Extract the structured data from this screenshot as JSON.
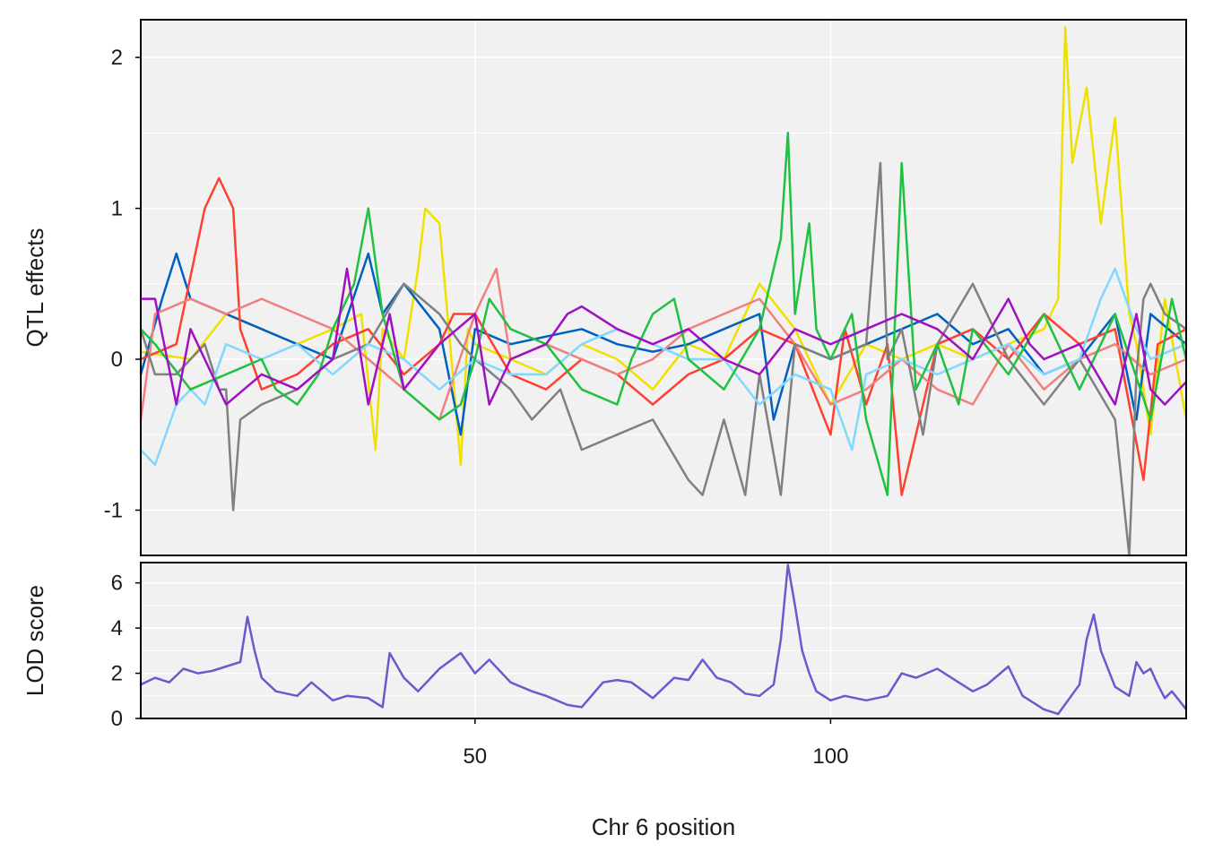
{
  "chart_data": [
    {
      "type": "line",
      "panel": "effects",
      "ylabel": "QTL effects",
      "xlim": [
        3,
        150
      ],
      "ylim": [
        -1.3,
        2.25
      ],
      "yticks": [
        -1,
        0,
        1,
        2
      ],
      "xticks": [
        50,
        100
      ],
      "grid": true,
      "legend": "none",
      "series": [
        {
          "color": "#F0E000",
          "x": [
            3,
            10,
            15,
            20,
            25,
            30,
            34,
            36,
            37,
            40,
            42,
            43,
            45,
            48,
            49,
            50,
            55,
            60,
            65,
            70,
            75,
            80,
            85,
            90,
            95,
            100,
            105,
            110,
            115,
            120,
            125,
            130,
            132,
            133,
            134,
            136,
            138,
            140,
            142,
            143,
            145,
            147,
            150
          ],
          "y": [
            0.05,
            0.0,
            0.3,
            0.2,
            0.1,
            0.2,
            0.3,
            -0.6,
            0.2,
            0.0,
            0.6,
            1.0,
            0.9,
            -0.7,
            0.2,
            0.1,
            0.0,
            -0.1,
            0.1,
            0.0,
            -0.2,
            0.1,
            0.0,
            0.5,
            0.2,
            -0.3,
            0.1,
            0.0,
            0.1,
            0.0,
            0.1,
            0.2,
            0.4,
            2.2,
            1.3,
            1.8,
            0.9,
            1.6,
            0.3,
            0.1,
            -0.5,
            0.4,
            -0.4
          ]
        },
        {
          "color": "#0060C0",
          "x": [
            3,
            6,
            8,
            10,
            15,
            20,
            25,
            30,
            35,
            37,
            40,
            45,
            48,
            50,
            55,
            60,
            65,
            70,
            75,
            80,
            85,
            90,
            92,
            95,
            100,
            105,
            110,
            115,
            120,
            125,
            130,
            135,
            140,
            143,
            145,
            150
          ],
          "y": [
            -0.1,
            0.4,
            0.7,
            0.4,
            0.3,
            0.2,
            0.1,
            0.0,
            0.7,
            0.3,
            0.5,
            0.2,
            -0.5,
            0.2,
            0.1,
            0.15,
            0.2,
            0.1,
            0.05,
            0.1,
            0.2,
            0.3,
            -0.4,
            0.1,
            0.0,
            0.1,
            0.2,
            0.3,
            0.1,
            0.2,
            -0.1,
            0.0,
            0.3,
            -0.4,
            0.3,
            0.1
          ]
        },
        {
          "color": "#FF4030",
          "x": [
            3,
            8,
            12,
            14,
            16,
            17,
            20,
            25,
            30,
            35,
            40,
            45,
            47,
            50,
            55,
            60,
            65,
            70,
            75,
            80,
            85,
            90,
            95,
            100,
            102,
            105,
            108,
            110,
            115,
            120,
            125,
            130,
            135,
            140,
            144,
            146,
            150
          ],
          "y": [
            0.0,
            0.1,
            1.0,
            1.2,
            1.0,
            0.2,
            -0.2,
            -0.1,
            0.1,
            0.2,
            -0.1,
            0.1,
            0.3,
            0.3,
            -0.1,
            -0.2,
            0.0,
            -0.1,
            -0.3,
            -0.1,
            0.0,
            0.2,
            0.1,
            -0.5,
            0.2,
            -0.3,
            0.1,
            -0.9,
            0.1,
            0.2,
            0.0,
            0.3,
            0.1,
            0.2,
            -0.8,
            0.1,
            0.2
          ]
        },
        {
          "color": "#F08080",
          "x": [
            3,
            5,
            10,
            15,
            20,
            25,
            30,
            35,
            40,
            45,
            50,
            53,
            55,
            60,
            65,
            70,
            75,
            80,
            85,
            90,
            95,
            100,
            105,
            110,
            115,
            120,
            125,
            130,
            135,
            140,
            145,
            150
          ],
          "y": [
            -0.4,
            0.3,
            0.4,
            0.3,
            0.4,
            0.3,
            0.2,
            0.0,
            -0.2,
            -0.4,
            0.3,
            0.6,
            0.0,
            0.1,
            0.0,
            -0.1,
            0.0,
            0.2,
            0.3,
            0.4,
            0.1,
            -0.3,
            -0.2,
            0.0,
            -0.2,
            -0.3,
            0.1,
            -0.2,
            0.0,
            0.1,
            -0.1,
            0.0
          ]
        },
        {
          "color": "#808080",
          "x": [
            3,
            5,
            8,
            10,
            12,
            14,
            15,
            16,
            17,
            20,
            25,
            30,
            35,
            40,
            45,
            48,
            50,
            55,
            58,
            60,
            62,
            65,
            70,
            75,
            80,
            82,
            85,
            88,
            90,
            93,
            95,
            100,
            105,
            107,
            108,
            110,
            113,
            115,
            120,
            125,
            130,
            135,
            140,
            142,
            143,
            144,
            145,
            147,
            150
          ],
          "y": [
            0.2,
            -0.1,
            -0.1,
            0.0,
            0.1,
            -0.2,
            -0.2,
            -1.0,
            -0.4,
            -0.3,
            -0.2,
            0.0,
            0.1,
            0.5,
            0.3,
            0.1,
            0.0,
            -0.2,
            -0.4,
            -0.3,
            -0.2,
            -0.6,
            -0.5,
            -0.4,
            -0.8,
            -0.9,
            -0.4,
            -0.9,
            -0.1,
            -0.9,
            0.1,
            0.0,
            0.1,
            1.3,
            0.0,
            0.2,
            -0.5,
            0.1,
            0.5,
            0.0,
            -0.3,
            0.0,
            -0.4,
            -1.3,
            -0.1,
            0.4,
            0.5,
            0.3,
            0.2
          ]
        },
        {
          "color": "#80D8FF",
          "x": [
            3,
            5,
            8,
            10,
            12,
            15,
            20,
            25,
            30,
            35,
            40,
            45,
            50,
            55,
            60,
            65,
            70,
            75,
            80,
            85,
            90,
            95,
            100,
            103,
            105,
            110,
            115,
            120,
            125,
            130,
            135,
            138,
            140,
            143,
            145,
            150
          ],
          "y": [
            -0.6,
            -0.7,
            -0.3,
            -0.2,
            -0.3,
            0.1,
            0.0,
            0.1,
            -0.1,
            0.1,
            0.0,
            -0.2,
            0.0,
            -0.1,
            -0.1,
            0.1,
            0.2,
            0.1,
            0.0,
            0.0,
            -0.3,
            -0.1,
            -0.2,
            -0.6,
            -0.1,
            0.0,
            -0.1,
            0.0,
            0.1,
            -0.1,
            0.0,
            0.4,
            0.6,
            0.2,
            0.0,
            0.1
          ]
        },
        {
          "color": "#20C040",
          "x": [
            3,
            5,
            10,
            15,
            20,
            22,
            25,
            28,
            30,
            33,
            35,
            37,
            40,
            45,
            48,
            50,
            52,
            55,
            60,
            65,
            70,
            72,
            75,
            78,
            80,
            85,
            90,
            93,
            94,
            95,
            97,
            98,
            100,
            103,
            105,
            108,
            109,
            110,
            112,
            115,
            118,
            120,
            125,
            130,
            135,
            140,
            145,
            148,
            150
          ],
          "y": [
            0.2,
            0.1,
            -0.2,
            -0.1,
            0.0,
            -0.2,
            -0.3,
            -0.1,
            0.2,
            0.5,
            1.0,
            0.3,
            -0.2,
            -0.4,
            -0.3,
            0.0,
            0.4,
            0.2,
            0.1,
            -0.2,
            -0.3,
            0.0,
            0.3,
            0.4,
            0.0,
            -0.2,
            0.2,
            0.8,
            1.5,
            0.3,
            0.9,
            0.2,
            0.0,
            0.3,
            -0.4,
            -0.9,
            0.2,
            1.3,
            -0.2,
            0.1,
            -0.3,
            0.2,
            -0.1,
            0.3,
            -0.2,
            0.3,
            -0.4,
            0.4,
            0.0
          ]
        },
        {
          "color": "#A010C0",
          "x": [
            3,
            5,
            8,
            10,
            15,
            20,
            25,
            30,
            32,
            35,
            38,
            40,
            45,
            50,
            52,
            55,
            60,
            63,
            65,
            70,
            75,
            80,
            85,
            90,
            95,
            100,
            105,
            110,
            115,
            120,
            125,
            128,
            130,
            135,
            140,
            143,
            145,
            147,
            150
          ],
          "y": [
            0.4,
            0.4,
            -0.3,
            0.2,
            -0.3,
            -0.1,
            -0.2,
            0.0,
            0.6,
            -0.3,
            0.3,
            -0.2,
            0.1,
            0.3,
            -0.3,
            0.0,
            0.1,
            0.3,
            0.35,
            0.2,
            0.1,
            0.2,
            0.0,
            -0.1,
            0.2,
            0.1,
            0.2,
            0.3,
            0.2,
            0.0,
            0.4,
            0.1,
            0.0,
            0.1,
            -0.3,
            0.3,
            -0.2,
            -0.3,
            -0.15
          ]
        }
      ]
    },
    {
      "type": "line",
      "panel": "lod",
      "ylabel": "LOD score",
      "xlabel": "Chr 6 position",
      "xlim": [
        3,
        150
      ],
      "ylim": [
        0,
        6.9
      ],
      "yticks": [
        0,
        2,
        4,
        6
      ],
      "xticks": [
        50,
        100
      ],
      "grid": true,
      "legend": "none",
      "series": [
        {
          "color": "#6A5ACD",
          "x": [
            3,
            5,
            7,
            9,
            11,
            13,
            15,
            17,
            18,
            19,
            20,
            22,
            25,
            27,
            30,
            32,
            35,
            37,
            38,
            40,
            42,
            45,
            48,
            50,
            52,
            55,
            58,
            60,
            63,
            65,
            68,
            70,
            72,
            75,
            78,
            80,
            82,
            84,
            86,
            88,
            90,
            92,
            93,
            94,
            95,
            96,
            97,
            98,
            100,
            102,
            105,
            108,
            110,
            112,
            115,
            118,
            120,
            122,
            125,
            127,
            130,
            132,
            135,
            136,
            137,
            138,
            140,
            142,
            143,
            144,
            145,
            146,
            147,
            148,
            149,
            150
          ],
          "y": [
            1.5,
            1.8,
            1.6,
            2.2,
            2.0,
            2.1,
            2.3,
            2.5,
            4.5,
            3.0,
            1.8,
            1.2,
            1.0,
            1.6,
            0.8,
            1.0,
            0.9,
            0.5,
            2.9,
            1.8,
            1.2,
            2.2,
            2.9,
            2.0,
            2.6,
            1.6,
            1.2,
            1.0,
            0.6,
            0.5,
            1.6,
            1.7,
            1.6,
            0.9,
            1.8,
            1.7,
            2.6,
            1.8,
            1.6,
            1.1,
            1.0,
            1.5,
            3.5,
            6.8,
            5.0,
            3.0,
            2.0,
            1.2,
            0.8,
            1.0,
            0.8,
            1.0,
            2.0,
            1.8,
            2.2,
            1.6,
            1.2,
            1.5,
            2.3,
            1.0,
            0.4,
            0.2,
            1.5,
            3.5,
            4.6,
            3.0,
            1.4,
            1.0,
            2.5,
            2.0,
            2.2,
            1.5,
            0.9,
            1.2,
            0.8,
            0.4
          ]
        }
      ]
    }
  ]
}
